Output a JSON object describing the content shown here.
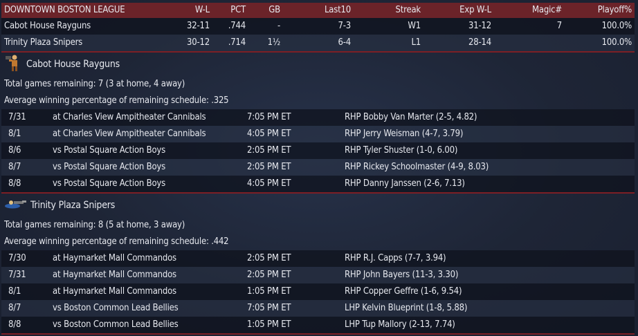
{
  "standings": {
    "header": {
      "league": "DOWNTOWN BOSTON LEAGUE",
      "wl": "W-L",
      "pct": "PCT",
      "gb": "GB",
      "last10": "Last10",
      "streak": "Streak",
      "expwl": "Exp W-L",
      "magic": "Magic#",
      "playoff": "Playoff%"
    },
    "rows": [
      {
        "team": "Cabot House Rayguns",
        "wl": "32-11",
        "pct": ".744",
        "gb": "-",
        "last10": "7-3",
        "streak": "W1",
        "expwl": "31-12",
        "magic": "7",
        "playoff": "100.0%"
      },
      {
        "team": "Trinity Plaza Snipers",
        "wl": "30-12",
        "pct": ".714",
        "gb": "1½",
        "last10": "6-4",
        "streak": "L1",
        "expwl": "28-14",
        "magic": "",
        "playoff": "100.0%"
      }
    ]
  },
  "teams": [
    {
      "name": "Cabot House Rayguns",
      "icon": "raygun-mascot-icon",
      "remaining": "Total games remaining: 7 (3 at home, 4 away)",
      "avg": "Average winning percentage of remaining schedule: .325",
      "games": [
        {
          "date": "7/31",
          "opp": "at Charles View Ampitheater Cannibals",
          "time": "7:05 PM ET",
          "pitcher": "RHP Bobby Van Marter (2-5, 4.82)"
        },
        {
          "date": "8/1",
          "opp": "at Charles View Ampitheater Cannibals",
          "time": "4:05 PM ET",
          "pitcher": "RHP Jerry Weisman (4-7, 3.79)"
        },
        {
          "date": "8/6",
          "opp": "vs Postal Square Action Boys",
          "time": "2:05 PM ET",
          "pitcher": "RHP Tyler Shuster (1-0, 6.00)"
        },
        {
          "date": "8/7",
          "opp": "vs Postal Square Action Boys",
          "time": "2:05 PM ET",
          "pitcher": "RHP Rickey Schoolmaster (4-9, 8.03)"
        },
        {
          "date": "8/8",
          "opp": "vs Postal Square Action Boys",
          "time": "4:05 PM ET",
          "pitcher": "RHP Danny Janssen (2-6, 7.13)"
        }
      ]
    },
    {
      "name": "Trinity Plaza Snipers",
      "icon": "sniper-mascot-icon",
      "remaining": "Total games remaining: 8 (5 at home, 3 away)",
      "avg": "Average winning percentage of remaining schedule: .442",
      "games": [
        {
          "date": "7/30",
          "opp": "at Haymarket Mall Commandos",
          "time": "2:05 PM ET",
          "pitcher": "RHP R.J. Capps (7-7, 3.94)"
        },
        {
          "date": "7/31",
          "opp": "at Haymarket Mall Commandos",
          "time": "2:05 PM ET",
          "pitcher": "RHP John Bayers (11-3, 3.30)"
        },
        {
          "date": "8/1",
          "opp": "at Haymarket Mall Commandos",
          "time": "1:05 PM ET",
          "pitcher": "RHP Copper Geffre (1-6, 9.54)"
        },
        {
          "date": "8/7",
          "opp": "vs Boston Common Lead Bellies",
          "time": "7:05 PM ET",
          "pitcher": "LHP Kelvin Blueprint (1-8, 5.88)"
        },
        {
          "date": "8/8",
          "opp": "vs Boston Common Lead Bellies",
          "time": "1:05 PM ET",
          "pitcher": "LHP Tup Mallory (2-13, 7.74)"
        }
      ]
    }
  ],
  "colors": {
    "header": "#6b2329",
    "separator": "#7d1f25",
    "background": "#1f2738"
  }
}
